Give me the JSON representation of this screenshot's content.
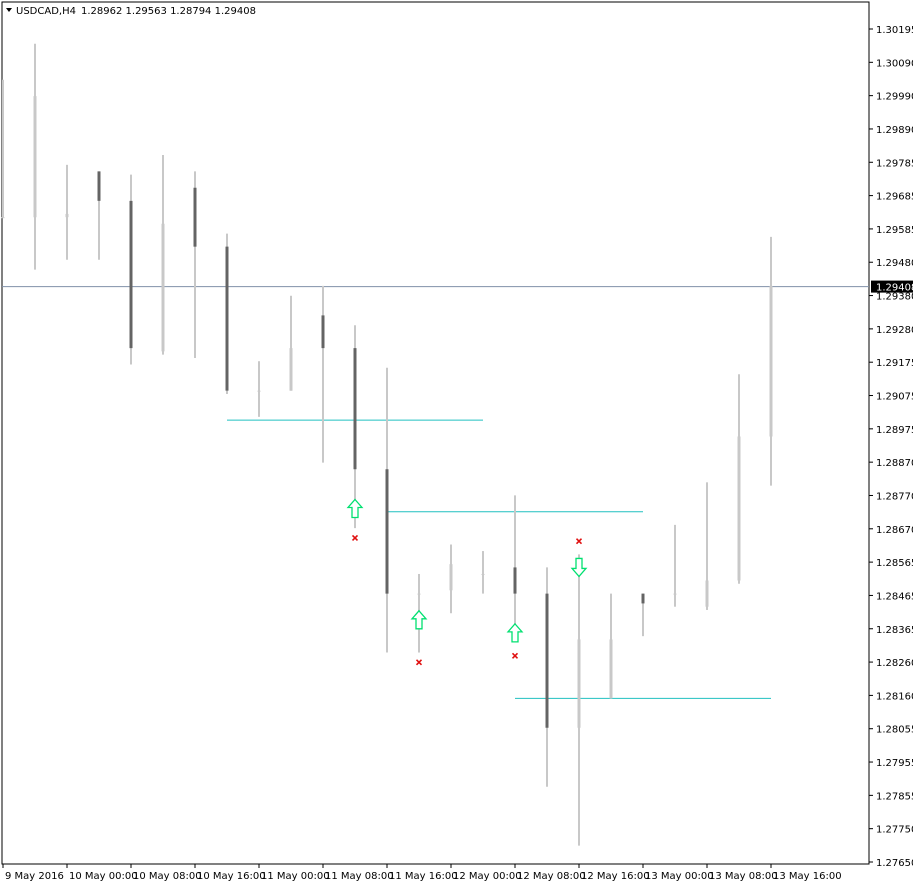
{
  "header": {
    "symbol_timeframe": "USDCAD,H4",
    "ohlc_values": "1.28962 1.29563 1.28794 1.29408"
  },
  "colors": {
    "background": "#ffffff",
    "frame": "#000000",
    "bull_candle": "#c8c8c8",
    "bear_candle": "#646464",
    "level_line": "#20c0c0",
    "bid_line": "#8090a8",
    "price_tag_bg": "#000000",
    "price_tag_text": "#ffffff",
    "arrow_color": "#00e070",
    "cross_color": "#e01010"
  },
  "chart_data": {
    "type": "candlestick",
    "title": "USDCAD,H4",
    "ylim": [
      1.2765,
      1.30245
    ],
    "y_ticks": [
      "1.30195",
      "1.30090",
      "1.29990",
      "1.29890",
      "1.29785",
      "1.29685",
      "1.29585",
      "1.29480",
      "1.29380",
      "1.29280",
      "1.29175",
      "1.29075",
      "1.28975",
      "1.28870",
      "1.28770",
      "1.28670",
      "1.28565",
      "1.28465",
      "1.28365",
      "1.28260",
      "1.28160",
      "1.28055",
      "1.27955",
      "1.27855",
      "1.27750",
      "1.27650"
    ],
    "x_ticks": [
      "9 May 2016",
      "10 May 00:00",
      "10 May 08:00",
      "10 May 16:00",
      "11 May 00:00",
      "11 May 08:00",
      "11 May 16:00",
      "12 May 00:00",
      "12 May 08:00",
      "12 May 16:00",
      "13 May 00:00",
      "13 May 08:00",
      "13 May 16:00"
    ],
    "current_price": "1.29408",
    "candles": [
      {
        "o": 1.2962,
        "h": 1.3004,
        "l": 1.2962,
        "c": 1.2962
      },
      {
        "o": 1.2962,
        "h": 1.3015,
        "l": 1.2946,
        "c": 1.2999
      },
      {
        "o": 1.2962,
        "h": 1.2978,
        "l": 1.2949,
        "c": 1.2963
      },
      {
        "o": 1.2976,
        "h": 1.2976,
        "l": 1.2949,
        "c": 1.2967
      },
      {
        "o": 1.2967,
        "h": 1.2975,
        "l": 1.2917,
        "c": 1.2922
      },
      {
        "o": 1.2921,
        "h": 1.2981,
        "l": 1.292,
        "c": 1.296
      },
      {
        "o": 1.2971,
        "h": 1.2976,
        "l": 1.2919,
        "c": 1.2953
      },
      {
        "o": 1.2953,
        "h": 1.2957,
        "l": 1.2908,
        "c": 1.2909
      },
      {
        "o": 1.2909,
        "h": 1.2918,
        "l": 1.2901,
        "c": 1.2909
      },
      {
        "o": 1.2909,
        "h": 1.2938,
        "l": 1.2909,
        "c": 1.2922
      },
      {
        "o": 1.2932,
        "h": 1.2941,
        "l": 1.2887,
        "c": 1.2922
      },
      {
        "o": 1.2922,
        "h": 1.2929,
        "l": 1.2867,
        "c": 1.2885
      },
      {
        "o": 1.2885,
        "h": 1.2916,
        "l": 1.2829,
        "c": 1.2847
      },
      {
        "o": 1.2847,
        "h": 1.2853,
        "l": 1.2829,
        "c": 1.2847
      },
      {
        "o": 1.2848,
        "h": 1.2862,
        "l": 1.2841,
        "c": 1.2856
      },
      {
        "o": 1.2853,
        "h": 1.286,
        "l": 1.2847,
        "c": 1.2853
      },
      {
        "o": 1.2855,
        "h": 1.2877,
        "l": 1.2834,
        "c": 1.2847
      },
      {
        "o": 1.2847,
        "h": 1.2855,
        "l": 1.2788,
        "c": 1.2806
      },
      {
        "o": 1.2806,
        "h": 1.2859,
        "l": 1.277,
        "c": 1.2833
      },
      {
        "o": 1.2815,
        "h": 1.2847,
        "l": 1.2815,
        "c": 1.2833
      },
      {
        "o": 1.2847,
        "h": 1.2847,
        "l": 1.2834,
        "c": 1.2844
      },
      {
        "o": 1.2847,
        "h": 1.2868,
        "l": 1.2843,
        "c": 1.2847
      },
      {
        "o": 1.2843,
        "h": 1.2881,
        "l": 1.2842,
        "c": 1.2851
      },
      {
        "o": 1.2851,
        "h": 1.2914,
        "l": 1.285,
        "c": 1.2895
      },
      {
        "o": 1.2895,
        "h": 1.2956,
        "l": 1.288,
        "c": 1.2941
      }
    ],
    "levels": [
      {
        "price": 1.29,
        "from": 7,
        "to": 15
      },
      {
        "price": 1.2872,
        "from": 12,
        "to": 20
      },
      {
        "price": 1.2815,
        "from": 16,
        "to": 24
      }
    ],
    "arrows": [
      {
        "index": 11,
        "direction": "up",
        "price": 1.2873
      },
      {
        "index": 13,
        "direction": "up",
        "price": 1.2839
      },
      {
        "index": 16,
        "direction": "up",
        "price": 1.2835
      },
      {
        "index": 18,
        "direction": "down",
        "price": 1.2855
      }
    ],
    "crosses": [
      {
        "index": 11,
        "price": 1.2864
      },
      {
        "index": 13,
        "price": 1.2826
      },
      {
        "index": 16,
        "price": 1.2828
      },
      {
        "index": 18,
        "price": 1.2863
      }
    ]
  }
}
